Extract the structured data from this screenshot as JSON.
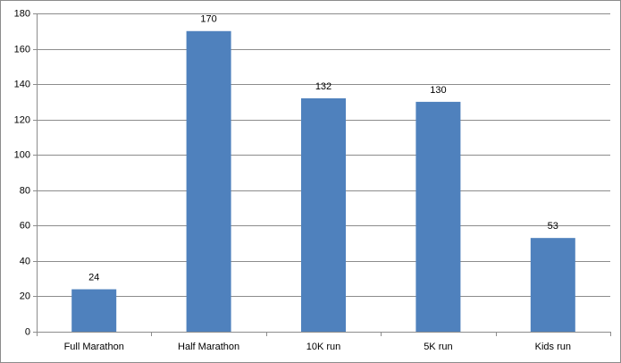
{
  "chart_data": {
    "type": "bar",
    "categories": [
      "Full Marathon",
      "Half Marathon",
      "10K run",
      "5K run",
      "Kids run"
    ],
    "values": [
      24,
      170,
      132,
      130,
      53
    ],
    "color": "#4f81bd",
    "ylim": [
      0,
      180
    ],
    "yticks": [
      0,
      20,
      40,
      60,
      80,
      100,
      120,
      140,
      160,
      180
    ],
    "grid": true,
    "data_labels": true
  }
}
